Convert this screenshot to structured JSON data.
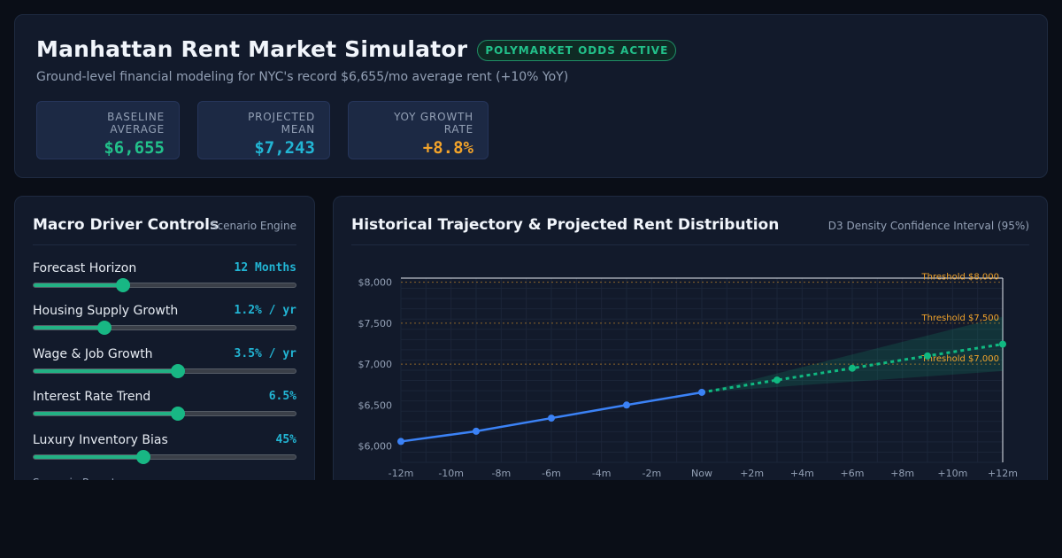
{
  "header": {
    "title": "Manhattan Rent Market Simulator",
    "badge": "POLYMARKET ODDS ACTIVE",
    "subtitle": "Ground-level financial modeling for NYC's record $6,655/mo average rent (+10% YoY)",
    "stats": [
      {
        "label": "BASELINE AVERAGE",
        "value": "$6,655",
        "color": "#22c08a"
      },
      {
        "label": "PROJECTED MEAN",
        "value": "$7,243",
        "color": "#22b5d4"
      },
      {
        "label": "YOY GROWTH RATE",
        "value": "+8.8%",
        "color": "#f2a32a"
      }
    ]
  },
  "controls": {
    "title": "Macro Driver Controls",
    "subtitle": "Scenario Engine",
    "presets_label": "Scenario Presets",
    "sliders": [
      {
        "name": "Forecast Horizon",
        "value": "12 Months",
        "level": 0.34
      },
      {
        "name": "Housing Supply Growth",
        "value": "1.2% / yr",
        "level": 0.27
      },
      {
        "name": "Wage & Job Growth",
        "value": "3.5% / yr",
        "level": 0.55
      },
      {
        "name": "Interest Rate Trend",
        "value": "6.5%",
        "level": 0.55
      },
      {
        "name": "Luxury Inventory Bias",
        "value": "45%",
        "level": 0.42
      }
    ]
  },
  "chart_panel": {
    "title": "Historical Trajectory & Projected Rent Distribution",
    "subtitle": "D3 Density Confidence Interval (95%)"
  },
  "chart_data": {
    "type": "line",
    "x_ticks": [
      "-12m",
      "-10m",
      "-8m",
      "-6m",
      "-4m",
      "-2m",
      "Now",
      "+2m",
      "+4m",
      "+6m",
      "+8m",
      "+10m",
      "+12m"
    ],
    "y_ticks": [
      "$8,000",
      "$7,500",
      "$7,000",
      "$6,500",
      "$6,000"
    ],
    "xlim": [
      -12,
      12
    ],
    "ylim": [
      5800,
      8050
    ],
    "grid": true,
    "thresholds": [
      {
        "label": "Threshold $8,000",
        "value": 8000
      },
      {
        "label": "Threshold $7,500",
        "value": 7500
      },
      {
        "label": "Threshold $7,000",
        "value": 7000
      }
    ],
    "series": [
      {
        "style": "solid",
        "color": "#3b82f6",
        "x": [
          -12,
          -9,
          -6,
          -3,
          0
        ],
        "y": [
          6055,
          6180,
          6340,
          6500,
          6655
        ]
      },
      {
        "style": "dashed",
        "color": "#10b981",
        "x": [
          0,
          3,
          6,
          9,
          12
        ],
        "y": [
          6655,
          6805,
          6950,
          7100,
          7243
        ]
      }
    ],
    "band": {
      "x": [
        0,
        12
      ],
      "lower": [
        6655,
        6915
      ],
      "upper": [
        6655,
        7580
      ]
    }
  }
}
